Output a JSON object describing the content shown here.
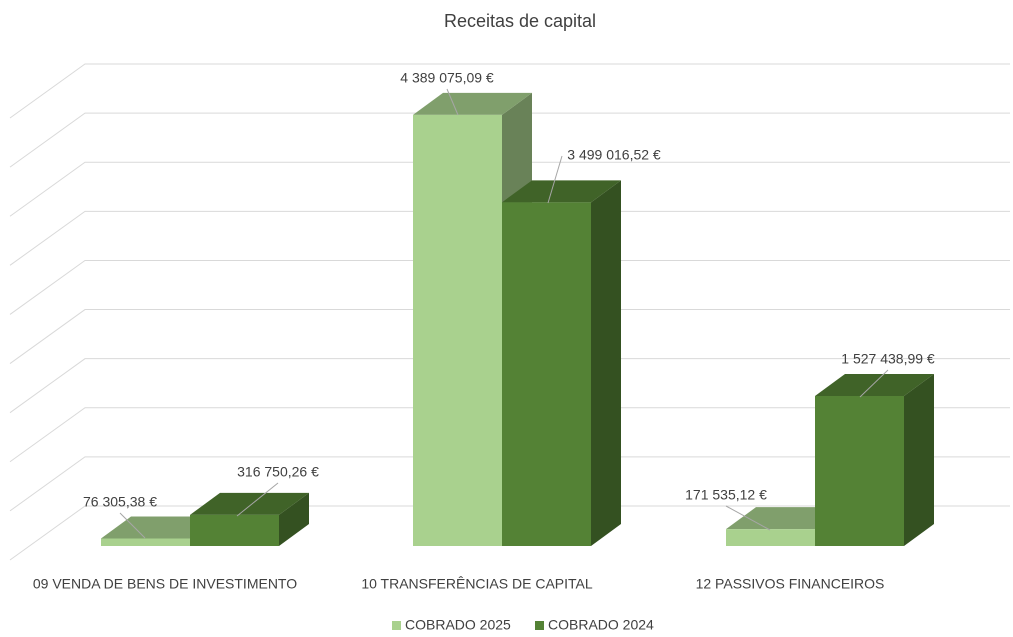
{
  "chart_data": {
    "type": "bar3d",
    "title": "Receitas de capital",
    "categories": [
      "09 VENDA DE BENS DE INVESTIMENTO",
      "10 TRANSFERÊNCIAS DE CAPITAL",
      "12 PASSIVOS FINANCEIROS"
    ],
    "series": [
      {
        "name": "COBRADO 2025",
        "color": "#a9d18e",
        "values": [
          76305.38,
          4389075.09,
          171535.12
        ],
        "value_labels": [
          "76 305,38 €",
          "4 389 075,09 €",
          "171 535,12 €"
        ]
      },
      {
        "name": "COBRADO 2024",
        "color": "#548235",
        "values": [
          316750.26,
          3499016.52,
          1527438.99
        ],
        "value_labels": [
          "316 750,26 €",
          "3 499 016,52 €",
          "1 527 438,99 €"
        ]
      }
    ],
    "ylim": [
      0,
      4500000
    ],
    "yticks": [
      0,
      500000,
      1000000,
      1500000,
      2000000,
      2500000,
      3000000,
      3500000,
      4000000,
      4500000
    ],
    "grid": true,
    "legend": "bottom"
  }
}
